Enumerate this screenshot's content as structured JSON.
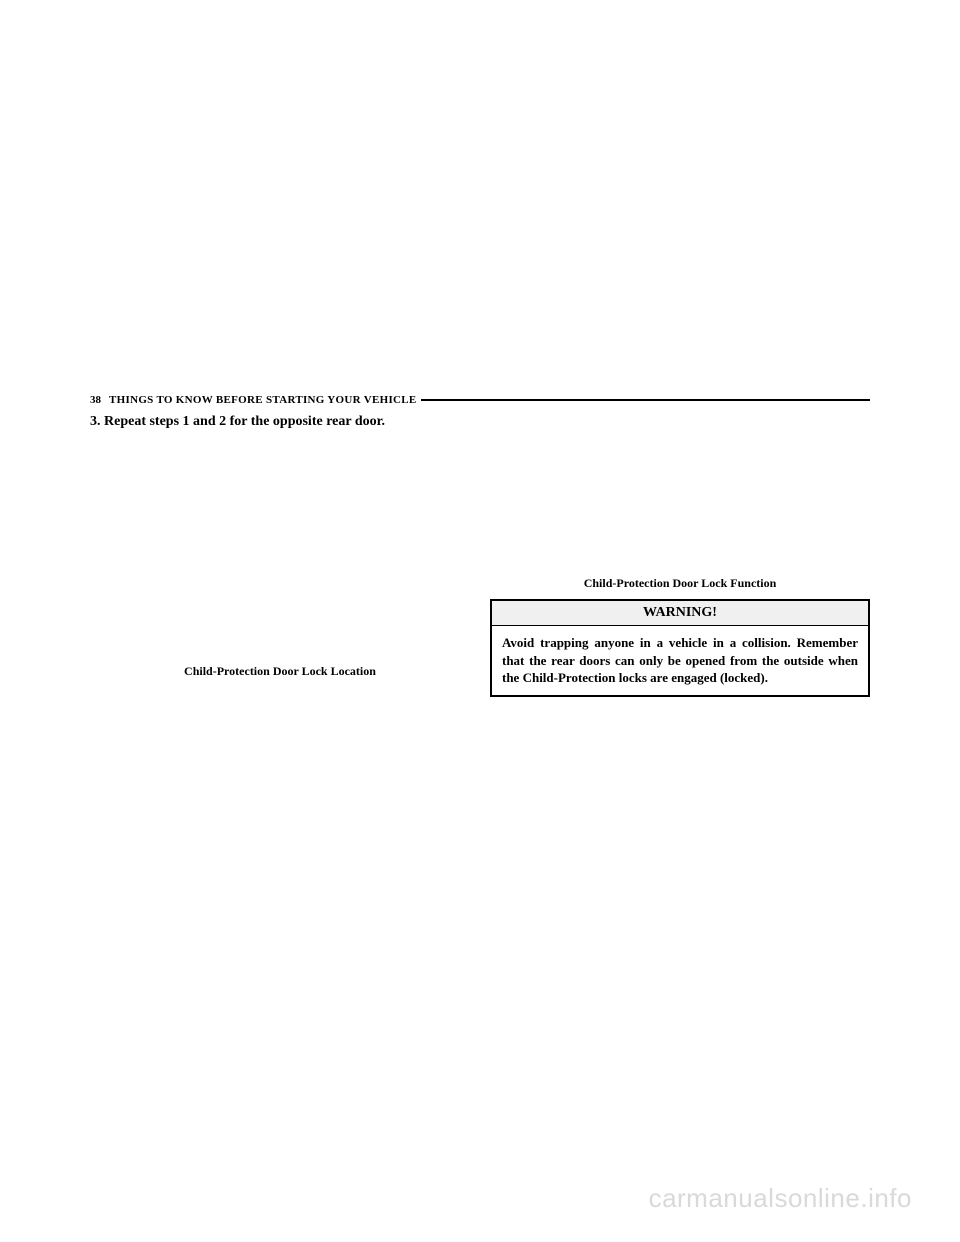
{
  "header": {
    "page_number": "38",
    "section_title": "THINGS TO KNOW BEFORE STARTING YOUR VEHICLE"
  },
  "left_column": {
    "step_text": "3.  Repeat steps 1 and 2 for the opposite rear door.",
    "figure_caption": "Child-Protection Door Lock Location"
  },
  "right_column": {
    "figure_caption": "Child-Protection Door Lock Function",
    "warning_title": "WARNING!",
    "warning_body": "Avoid trapping anyone in a vehicle in a collision. Remember that the rear doors can only be opened from the outside when the Child-Protection locks are engaged (locked)."
  },
  "watermark": "carmanualsonline.info"
}
